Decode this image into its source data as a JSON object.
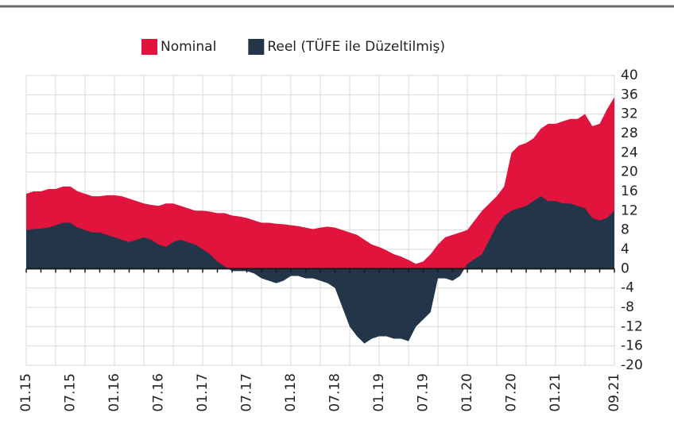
{
  "chart_data": {
    "type": "area",
    "categories": [
      "01.15",
      null,
      null,
      null,
      null,
      null,
      "07.15",
      null,
      null,
      null,
      null,
      null,
      "01.16",
      null,
      null,
      null,
      null,
      null,
      "07.16",
      null,
      null,
      null,
      null,
      null,
      "01.17",
      null,
      null,
      null,
      null,
      null,
      "07.17",
      null,
      null,
      null,
      null,
      null,
      "01.18",
      null,
      null,
      null,
      null,
      null,
      "07.18",
      null,
      null,
      null,
      null,
      null,
      "01.19",
      null,
      null,
      null,
      null,
      null,
      "07.19",
      null,
      null,
      null,
      null,
      null,
      "01.20",
      null,
      null,
      null,
      null,
      null,
      "07.20",
      null,
      null,
      null,
      null,
      null,
      "01.21",
      null,
      null,
      null,
      null,
      null,
      null,
      null,
      "09.21"
    ],
    "series": [
      {
        "name": "Nominal",
        "color": "#e0143c",
        "values": [
          15.5,
          16,
          16,
          16.5,
          16.5,
          17,
          17,
          16,
          15.5,
          15,
          15,
          15.2,
          15.2,
          15,
          14.5,
          14,
          13.5,
          13.2,
          13,
          13.5,
          13.5,
          13,
          12.5,
          12,
          12,
          11.8,
          11.5,
          11.5,
          11,
          10.8,
          10.5,
          10,
          9.5,
          9.5,
          9.3,
          9.2,
          9,
          8.8,
          8.5,
          8.2,
          8.5,
          8.7,
          8.5,
          8,
          7.5,
          7,
          6,
          5,
          4.5,
          3.8,
          3,
          2.5,
          1.8,
          1,
          1.5,
          3,
          5,
          6.5,
          7,
          7.5,
          8,
          10,
          12,
          13.5,
          15,
          17,
          24,
          25.5,
          26,
          27,
          29,
          30,
          30,
          30.5,
          31,
          31,
          32,
          29.5,
          30,
          33,
          35.5
        ]
      },
      {
        "name": "Reel (TÜFE ile Düzeltilmiş)",
        "color": "#233649",
        "values": [
          8,
          8.2,
          8.3,
          8.5,
          9,
          9.5,
          9.5,
          8.5,
          8,
          7.5,
          7.5,
          7,
          6.5,
          6,
          5.5,
          6,
          6.5,
          6,
          5,
          4.5,
          5.5,
          6,
          5.5,
          5,
          4,
          3,
          1.5,
          0.5,
          -0.5,
          -0.5,
          -0.5,
          -1,
          -2,
          -2.5,
          -3,
          -2.5,
          -1.5,
          -1.5,
          -2,
          -2,
          -2.5,
          -3,
          -4,
          -8,
          -12,
          -14,
          -15.5,
          -14.5,
          -14,
          -14,
          -14.5,
          -14.5,
          -15,
          -12,
          -10.5,
          -9,
          -2,
          -2,
          -2.5,
          -1.5,
          1,
          2,
          3,
          6,
          9,
          11,
          12,
          12.5,
          13,
          14,
          15,
          14,
          14,
          13.5,
          13.5,
          13,
          12.5,
          10.5,
          10,
          10.5,
          12
        ]
      }
    ],
    "ylim": [
      -20,
      40
    ],
    "yticks": [
      40,
      36,
      32,
      28,
      24,
      20,
      16,
      12,
      8,
      4,
      0,
      -4,
      -8,
      -12,
      -16,
      -20
    ],
    "grid": true
  }
}
